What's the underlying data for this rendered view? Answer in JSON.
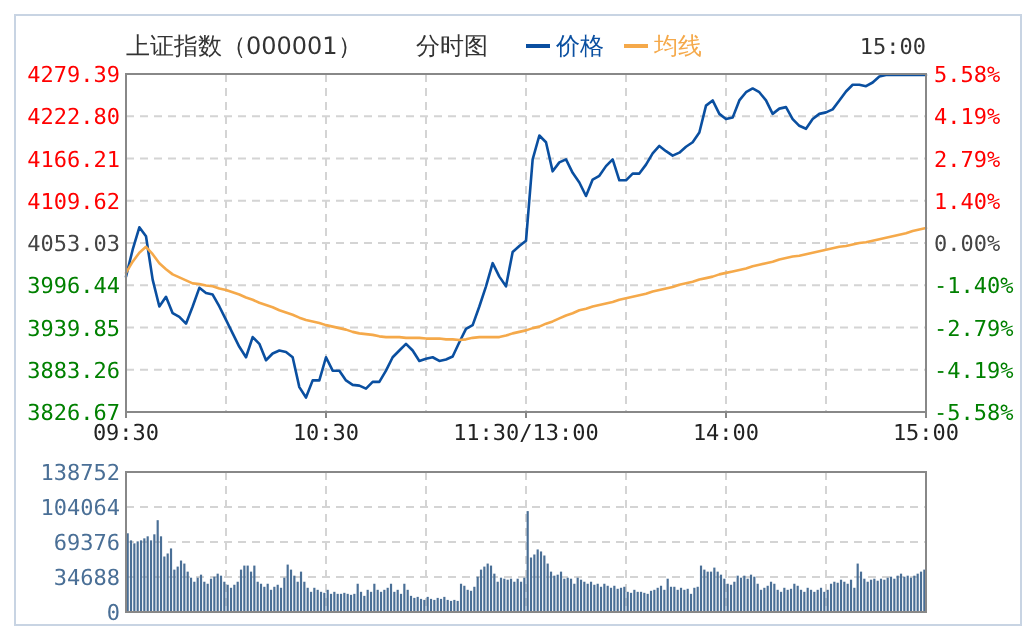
{
  "chart_data": [
    {
      "type": "line",
      "title": "上证指数（000001）",
      "subtitle": "分时图",
      "annotations": [
        "15:00"
      ],
      "legend": "top",
      "grid": true,
      "categories": [
        "09:30",
        null,
        null,
        null,
        null,
        null,
        null,
        null,
        null,
        null,
        null,
        null,
        null,
        null,
        null,
        null,
        null,
        null,
        null,
        null,
        null,
        null,
        null,
        null,
        null,
        null,
        null,
        null,
        null,
        null,
        "10:30",
        null,
        null,
        null,
        null,
        null,
        null,
        null,
        null,
        null,
        null,
        null,
        null,
        null,
        null,
        null,
        null,
        null,
        null,
        null,
        null,
        null,
        null,
        null,
        null,
        null,
        null,
        null,
        null,
        null,
        "11:30/13:00",
        null,
        null,
        null,
        null,
        null,
        null,
        null,
        null,
        null,
        null,
        null,
        null,
        null,
        null,
        null,
        null,
        null,
        null,
        null,
        null,
        null,
        null,
        null,
        null,
        null,
        null,
        null,
        null,
        null,
        "14:00",
        null,
        null,
        null,
        null,
        null,
        null,
        null,
        null,
        null,
        null,
        null,
        null,
        null,
        null,
        null,
        null,
        null,
        null,
        null,
        null,
        null,
        null,
        null,
        null,
        null,
        null,
        null,
        null,
        null,
        "15:00"
      ],
      "ylim": [
        3826.67,
        4279.39
      ],
      "yticks": [
        4279.39,
        {
          "value": 4222.8,
          "label": "4222.80"
        },
        4166.21,
        4109.62,
        4053.03,
        3996.44,
        3939.85,
        3883.26,
        3826.67
      ],
      "y2lim": [
        -5.58,
        5.58
      ],
      "y2ticks": [
        {
          "value": 5.58,
          "label": "5.58%"
        },
        {
          "value": 4.19,
          "label": "4.19%"
        },
        {
          "value": 2.79,
          "label": "2.79%"
        },
        {
          "value": 1.4,
          "label": "1.40%"
        },
        {
          "value": 0,
          "label": "0.00%"
        },
        {
          "value": -1.4,
          "label": "-1.40%"
        },
        {
          "value": -2.79,
          "label": "-2.79%"
        },
        {
          "value": -4.19,
          "label": "-4.19%"
        },
        {
          "value": -5.58,
          "label": "-5.58%"
        }
      ],
      "series": [
        {
          "name": "价格",
          "color": "#0a4fa0",
          "values": [
            4008,
            4044,
            4074,
            4062,
            4004,
            3968,
            3981,
            3959,
            3954,
            3945,
            3968,
            3993,
            3986,
            3984,
            3968,
            3950,
            3932,
            3914,
            3900,
            3927,
            3918,
            3896,
            3905,
            3909,
            3907,
            3900,
            3860,
            3846,
            3869,
            3869,
            3900,
            3882,
            3882,
            3869,
            3863,
            3862,
            3858,
            3867,
            3867,
            3882,
            3900,
            3909,
            3918,
            3909,
            3895,
            3898,
            3900,
            3895,
            3897,
            3901,
            3920,
            3938,
            3943,
            3968,
            3995,
            4026,
            4008,
            3995,
            4041,
            4049,
            4056,
            4165,
            4197,
            4188,
            4149,
            4161,
            4165,
            4147,
            4134,
            4116,
            4138,
            4143,
            4156,
            4165,
            4137,
            4137,
            4146,
            4146,
            4158,
            4173,
            4183,
            4176,
            4170,
            4174,
            4182,
            4188,
            4201,
            4237,
            4244,
            4226,
            4219,
            4221,
            4244,
            4255,
            4260,
            4255,
            4244,
            4226,
            4233,
            4235,
            4219,
            4210,
            4206,
            4219,
            4226,
            4228,
            4232,
            4244,
            4256,
            4265,
            4265,
            4263,
            4268,
            4276,
            4278,
            4278,
            4278,
            4278,
            4278,
            4278,
            4278
          ]
        },
        {
          "name": "均线",
          "color": "#f5a94a",
          "values": [
            4013,
            4028,
            4040,
            4048,
            4038,
            4026,
            4018,
            4011,
            4007,
            4003,
            3999,
            3998,
            3996,
            3995,
            3992,
            3990,
            3987,
            3984,
            3980,
            3977,
            3973,
            3970,
            3967,
            3963,
            3960,
            3957,
            3953,
            3950,
            3948,
            3946,
            3943,
            3941,
            3939,
            3937,
            3934,
            3932,
            3931,
            3930,
            3928,
            3927,
            3927,
            3927,
            3926,
            3926,
            3926,
            3925,
            3925,
            3925,
            3924,
            3924,
            3923,
            3924,
            3926,
            3927,
            3927,
            3927,
            3927,
            3929,
            3932,
            3934,
            3936,
            3939,
            3941,
            3945,
            3948,
            3952,
            3956,
            3959,
            3963,
            3965,
            3968,
            3970,
            3972,
            3974,
            3977,
            3979,
            3981,
            3983,
            3985,
            3988,
            3990,
            3992,
            3994,
            3997,
            3999,
            4001,
            4004,
            4006,
            4008,
            4011,
            4013,
            4015,
            4017,
            4019,
            4022,
            4024,
            4026,
            4028,
            4031,
            4033,
            4035,
            4036,
            4038,
            4040,
            4042,
            4044,
            4046,
            4048,
            4049,
            4051,
            4053,
            4054,
            4056,
            4058,
            4060,
            4062,
            4064,
            4066,
            4069,
            4071,
            4073
          ]
        }
      ]
    },
    {
      "type": "bar",
      "color": "#4a6f96",
      "grid": true,
      "tick_labels": "y",
      "categories": [
        null,
        null,
        null,
        null,
        null,
        null,
        null,
        null,
        null,
        null,
        null,
        null,
        null,
        null,
        null,
        null,
        null,
        null,
        null,
        null,
        null,
        null,
        null,
        null,
        null,
        null,
        null,
        null,
        null,
        null,
        null,
        null,
        null,
        null,
        null,
        null,
        null,
        null,
        null,
        null,
        null,
        null,
        null,
        null,
        null,
        null,
        null,
        null,
        null,
        null,
        null,
        null,
        null,
        null,
        null,
        null,
        null,
        null,
        null,
        null,
        null,
        null,
        null,
        null,
        null,
        null,
        null,
        null,
        null,
        null,
        null,
        null,
        null,
        null,
        null,
        null,
        null,
        null,
        null,
        null,
        null,
        null,
        null,
        null,
        null,
        null,
        null,
        null,
        null,
        null,
        null,
        null,
        null,
        null,
        null,
        null,
        null,
        null,
        null,
        null,
        null,
        null,
        null,
        null,
        null,
        null,
        null,
        null,
        null,
        null,
        null,
        null,
        null,
        null,
        null,
        null,
        null,
        null,
        null,
        null,
        null,
        null,
        null,
        null,
        null,
        null,
        null,
        null,
        null,
        null,
        null,
        null,
        null,
        null,
        null,
        null,
        null,
        null,
        null,
        null,
        null,
        null,
        null,
        null,
        null,
        null,
        null,
        null,
        null,
        null,
        null,
        null,
        null,
        null,
        null,
        null,
        null,
        null,
        null,
        null,
        null,
        null,
        null,
        null,
        null,
        null,
        null,
        null,
        null,
        null,
        null,
        null,
        null,
        null,
        null,
        null,
        null,
        null,
        null,
        null,
        null,
        null,
        null,
        null,
        null,
        null,
        null,
        null,
        null,
        null,
        null,
        null,
        null,
        null,
        null,
        null,
        null,
        null,
        null,
        null,
        null,
        null,
        null,
        null,
        null,
        null,
        null,
        null,
        null,
        null,
        null,
        null,
        null,
        null,
        null,
        null,
        null,
        null,
        null,
        null,
        null,
        null,
        null,
        null,
        null,
        null,
        null,
        null,
        null,
        null,
        null,
        null,
        null,
        null,
        null,
        null,
        null,
        null,
        null,
        null
      ],
      "ylim": [
        0,
        138752
      ],
      "yticks": [
        0,
        34688,
        69376,
        104064,
        138752
      ],
      "values": [
        78000,
        71000,
        68000,
        70000,
        71000,
        73000,
        75000,
        71000,
        77000,
        91000,
        75000,
        55000,
        58000,
        63000,
        42000,
        45000,
        51000,
        48000,
        40000,
        34000,
        30000,
        34000,
        37000,
        30000,
        28000,
        33000,
        35000,
        38000,
        36000,
        30000,
        27000,
        24000,
        27000,
        30000,
        42000,
        46000,
        46000,
        40000,
        46000,
        30000,
        28000,
        25000,
        28000,
        22000,
        25000,
        27000,
        24000,
        34000,
        47000,
        42000,
        36000,
        30000,
        40000,
        30000,
        24000,
        20000,
        24000,
        22000,
        20000,
        19000,
        22000,
        18000,
        20000,
        18000,
        18000,
        19000,
        18000,
        17000,
        18000,
        28000,
        20000,
        16000,
        22000,
        20000,
        28000,
        22000,
        20000,
        22000,
        24000,
        28000,
        20000,
        22000,
        18000,
        28000,
        22000,
        16000,
        14000,
        15000,
        13000,
        12000,
        15000,
        13000,
        12000,
        14000,
        13000,
        15000,
        12000,
        11000,
        12000,
        11000,
        28000,
        26000,
        22000,
        21000,
        25000,
        35000,
        42000,
        45000,
        48000,
        46000,
        38000,
        30000,
        34000,
        33000,
        32000,
        33000,
        30000,
        33000,
        30000,
        34000,
        100000,
        54000,
        57000,
        62000,
        60000,
        56000,
        48000,
        40000,
        36000,
        37000,
        40000,
        33000,
        34000,
        33000,
        28000,
        34000,
        32000,
        30000,
        28000,
        30000,
        27000,
        28000,
        25000,
        28000,
        26000,
        24000,
        26000,
        23000,
        24000,
        25000,
        20000,
        19000,
        22000,
        20000,
        20000,
        19000,
        18000,
        21000,
        22000,
        24000,
        26000,
        22000,
        33000,
        25000,
        25000,
        22000,
        24000,
        22000,
        23000,
        18000,
        24000,
        25000,
        46000,
        42000,
        40000,
        40000,
        44000,
        40000,
        37000,
        33000,
        28000,
        27000,
        30000,
        36000,
        34000,
        36000,
        33000,
        37000,
        35000,
        28000,
        22000,
        24000,
        26000,
        30000,
        28000,
        22000,
        20000,
        24000,
        22000,
        23000,
        28000,
        26000,
        22000,
        20000,
        24000,
        22000,
        20000,
        22000,
        24000,
        20000,
        22000,
        28000,
        30000,
        29000,
        32000,
        30000,
        28000,
        32000,
        24000,
        48000,
        40000,
        33000,
        30000,
        32000,
        33000,
        31000,
        33000,
        32000,
        34000,
        35000,
        33000,
        36000,
        38000,
        35000,
        36000,
        34000,
        36000,
        38000,
        40000,
        42000
      ]
    }
  ]
}
